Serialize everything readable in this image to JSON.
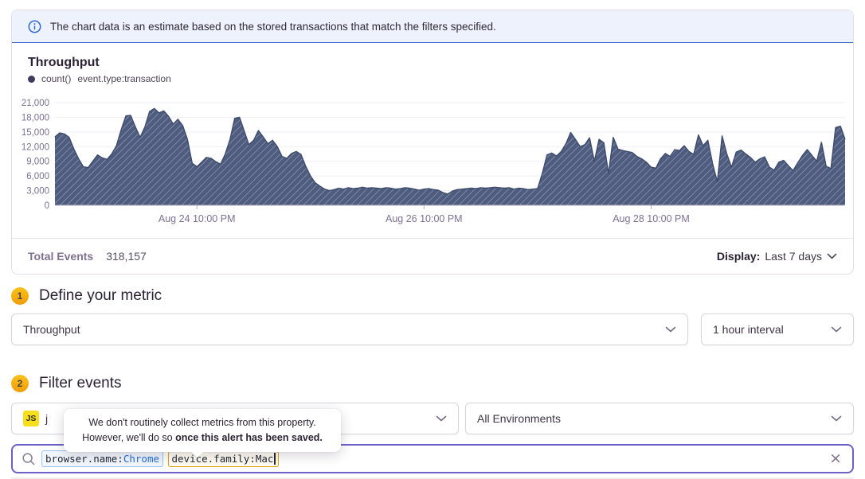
{
  "banner": {
    "text": "The chart data is an estimate based on the stored transactions that match the filters specified."
  },
  "chart_panel": {
    "title": "Throughput",
    "legend": {
      "series_label": "count()",
      "filter_label": "event.type:transaction"
    },
    "footer": {
      "total_events_label": "Total Events",
      "total_events_value": "318,157",
      "display_label": "Display:",
      "display_value": "Last 7 days"
    }
  },
  "chart_data": {
    "type": "area",
    "title": "Throughput",
    "ylabel": "",
    "xlabel": "",
    "ylim": [
      0,
      21000
    ],
    "y_ticks": [
      0,
      3000,
      6000,
      9000,
      12000,
      15000,
      18000,
      21000
    ],
    "grid": true,
    "legend_position": "top-left",
    "fill_color": "#4e5c80",
    "hatch_color": "rgba(255,255,255,0.38)",
    "line_color": "#3e4c6c",
    "axis_color": "#b6afc2",
    "x_ticks": [
      {
        "label": "Aug 24 10:00 PM",
        "index": 30
      },
      {
        "label": "Aug 26 10:00 PM",
        "index": 78
      },
      {
        "label": "Aug 28 10:00 PM",
        "index": 126
      }
    ],
    "series": [
      {
        "name": "count() event.type:transaction",
        "values": [
          14000,
          14800,
          14600,
          13900,
          11500,
          9500,
          7900,
          7700,
          9000,
          10300,
          9700,
          9400,
          10500,
          12200,
          15500,
          18300,
          18400,
          16000,
          13900,
          16000,
          19200,
          19800,
          18900,
          19300,
          18200,
          16600,
          17600,
          16300,
          13500,
          8600,
          7900,
          8800,
          9800,
          9600,
          8900,
          8400,
          10500,
          13500,
          17800,
          18000,
          15200,
          12400,
          13300,
          15300,
          14000,
          12600,
          13300,
          12000,
          10000,
          9600,
          10600,
          11000,
          10400,
          8000,
          6000,
          4600,
          3900,
          3300,
          3000,
          3200,
          3500,
          3300,
          3600,
          3400,
          3500,
          3700,
          3500,
          3600,
          3500,
          3400,
          3600,
          3500,
          3300,
          3400,
          3600,
          3500,
          3300,
          3100,
          3300,
          3400,
          3200,
          3100,
          2600,
          2300,
          2900,
          3200,
          3300,
          3400,
          3500,
          3400,
          3600,
          3500,
          3600,
          3700,
          3600,
          3500,
          3600,
          3300,
          3500,
          3400,
          3200,
          3300,
          3400,
          6500,
          10300,
          10700,
          10100,
          11000,
          12600,
          14900,
          13500,
          12000,
          12400,
          13800,
          9000,
          13500,
          12800,
          6500,
          13900,
          11500,
          11200,
          11000,
          10800,
          10000,
          9500,
          8800,
          7800,
          7600,
          9500,
          10600,
          10000,
          11400,
          11200,
          12200,
          11000,
          10400,
          14400,
          12200,
          13300,
          8500,
          4800,
          14200,
          10500,
          7800,
          10900,
          11300,
          10500,
          9800,
          8800,
          9500,
          9900,
          7800,
          7200,
          8800,
          9200,
          8100,
          7100,
          8700,
          10200,
          11400,
          10200,
          9000,
          12900,
          8000,
          7500,
          15900,
          16200,
          13500
        ]
      }
    ]
  },
  "sections": {
    "metric": {
      "number": "1",
      "title": "Define your metric",
      "metric_select_value": "Throughput",
      "interval_select_value": "1 hour interval"
    },
    "filter": {
      "number": "2",
      "title": "Filter events",
      "project_badge": "JS",
      "project_name_visible": "j",
      "environment_select_value": "All Environments"
    }
  },
  "tooltip": {
    "line1": "We don't routinely collect metrics from this property.",
    "line2_prefix": "However, we'll do so ",
    "line2_bold": "once this alert has been saved."
  },
  "search": {
    "clear_label": "×",
    "tokens": [
      {
        "key": "browser.name:",
        "value": "Chrome",
        "state": "normal"
      },
      {
        "key": "device.family:",
        "value": "Mac",
        "state": "active",
        "cursor": true
      }
    ]
  },
  "colors": {
    "accent_purple": "#6c5fc7",
    "banner_bg": "#edf2fc",
    "banner_border": "#3b6ecb",
    "info_blue": "#2b66d9",
    "badge_yellow": "#f5b000",
    "js_yellow": "#f7df1e",
    "token_blue_border": "#9cc2ef",
    "token_amber_border": "#e0a400",
    "chart_fill": "#4e5c80",
    "text_primary": "#2b2233",
    "text_secondary": "#80708f"
  }
}
